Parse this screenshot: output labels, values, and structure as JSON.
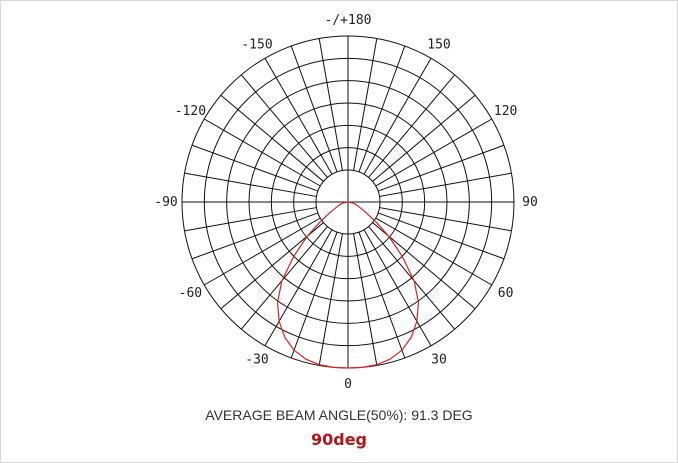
{
  "chart_data": {
    "type": "polar-line",
    "title": "",
    "angle_labels": [
      {
        "angle": 0,
        "text": "0"
      },
      {
        "angle": 30,
        "text": "30"
      },
      {
        "angle": -30,
        "text": "-30"
      },
      {
        "angle": 60,
        "text": "60"
      },
      {
        "angle": -60,
        "text": "-60"
      },
      {
        "angle": 90,
        "text": "90"
      },
      {
        "angle": -90,
        "text": "-90"
      },
      {
        "angle": 120,
        "text": "120"
      },
      {
        "angle": -120,
        "text": "-120"
      },
      {
        "angle": 150,
        "text": "150"
      },
      {
        "angle": -150,
        "text": "-150"
      },
      {
        "angle": 180,
        "text": "-/+180"
      }
    ],
    "rings": 6,
    "spoke_step_deg": 10,
    "grid": true,
    "series": [
      {
        "color": "#e02020",
        "angles": [
          -90,
          -80,
          -70,
          -60,
          -55,
          -50,
          -45,
          -40,
          -35,
          -30,
          -25,
          -20,
          -15,
          -10,
          -5,
          0,
          5,
          10,
          15,
          20,
          25,
          30,
          35,
          40,
          45,
          50,
          55,
          60,
          70,
          80,
          90
        ],
        "values": [
          0.0,
          0.03,
          0.06,
          0.12,
          0.2,
          0.32,
          0.46,
          0.62,
          0.74,
          0.83,
          0.9,
          0.95,
          0.98,
          0.995,
          1.0,
          1.0,
          1.0,
          0.995,
          0.98,
          0.95,
          0.9,
          0.83,
          0.74,
          0.62,
          0.46,
          0.32,
          0.2,
          0.12,
          0.06,
          0.03,
          0.0
        ]
      }
    ]
  },
  "caption": {
    "beam_angle": "AVERAGE BEAM ANGLE(50%): 91.3 DEG",
    "value": "90deg"
  }
}
